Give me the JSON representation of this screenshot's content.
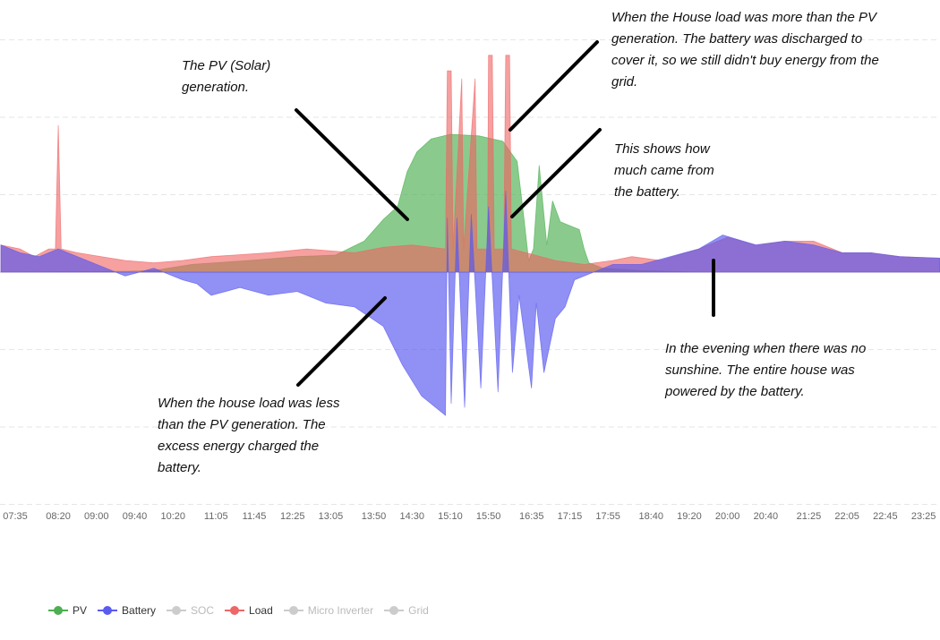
{
  "chart_data": {
    "type": "area",
    "title": "",
    "xlabel": "",
    "ylabel": "",
    "ylim": [
      -3,
      3
    ],
    "grid": true,
    "legend_placement": "bottom-left",
    "x_ticks": [
      "07:35",
      "08:20",
      "09:00",
      "09:40",
      "10:20",
      "11:05",
      "11:45",
      "12:25",
      "13:05",
      "13:50",
      "14:30",
      "15:10",
      "15:50",
      "16:35",
      "17:15",
      "17:55",
      "18:40",
      "19:20",
      "20:00",
      "20:40",
      "21:25",
      "22:05",
      "22:45",
      "23:25"
    ],
    "series": [
      {
        "name": "PV",
        "color": "#4caf50",
        "visible": true,
        "points": [
          [
            "07:20",
            0
          ],
          [
            "09:30",
            0.01
          ],
          [
            "10:00",
            0.02
          ],
          [
            "10:40",
            0.1
          ],
          [
            "11:40",
            0.15
          ],
          [
            "12:30",
            0.2
          ],
          [
            "13:10",
            0.22
          ],
          [
            "13:40",
            0.4
          ],
          [
            "14:00",
            0.68
          ],
          [
            "14:15",
            0.85
          ],
          [
            "14:25",
            1.3
          ],
          [
            "14:35",
            1.55
          ],
          [
            "14:50",
            1.72
          ],
          [
            "15:10",
            1.78
          ],
          [
            "15:40",
            1.76
          ],
          [
            "16:05",
            1.69
          ],
          [
            "16:20",
            1.43
          ],
          [
            "16:27",
            0.7
          ],
          [
            "16:32",
            0.15
          ],
          [
            "16:37",
            0.3
          ],
          [
            "16:43",
            1.38
          ],
          [
            "16:51",
            0.35
          ],
          [
            "16:57",
            0.92
          ],
          [
            "17:05",
            0.65
          ],
          [
            "17:15",
            0.6
          ],
          [
            "17:25",
            0.55
          ],
          [
            "17:30",
            0.3
          ],
          [
            "17:35",
            0.12
          ],
          [
            "17:50",
            0.05
          ],
          [
            "18:30",
            0.02
          ],
          [
            "19:30",
            0
          ],
          [
            "23:42",
            0
          ]
        ]
      },
      {
        "name": "Battery",
        "color": "#5b5bef",
        "visible": true,
        "points": [
          [
            "07:20",
            0.35
          ],
          [
            "07:40",
            0.25
          ],
          [
            "08:00",
            0.2
          ],
          [
            "08:20",
            0.3
          ],
          [
            "09:00",
            0.1
          ],
          [
            "09:30",
            -0.05
          ],
          [
            "10:00",
            0.05
          ],
          [
            "10:30",
            -0.1
          ],
          [
            "10:45",
            -0.15
          ],
          [
            "11:00",
            -0.3
          ],
          [
            "11:30",
            -0.2
          ],
          [
            "12:00",
            -0.3
          ],
          [
            "12:30",
            -0.25
          ],
          [
            "13:00",
            -0.4
          ],
          [
            "13:30",
            -0.45
          ],
          [
            "14:00",
            -0.7
          ],
          [
            "14:20",
            -1.2
          ],
          [
            "14:40",
            -1.6
          ],
          [
            "15:05",
            -1.85
          ],
          [
            "15:07",
            0.7
          ],
          [
            "15:11",
            -1.7
          ],
          [
            "15:17",
            0.7
          ],
          [
            "15:25",
            -1.75
          ],
          [
            "15:32",
            0.75
          ],
          [
            "15:42",
            -1.5
          ],
          [
            "15:50",
            0.85
          ],
          [
            "16:00",
            -1.55
          ],
          [
            "16:08",
            1.05
          ],
          [
            "16:15",
            -1.3
          ],
          [
            "16:22",
            -0.3
          ],
          [
            "16:35",
            -1.5
          ],
          [
            "16:40",
            -0.4
          ],
          [
            "16:48",
            -1.3
          ],
          [
            "17:00",
            -0.6
          ],
          [
            "17:10",
            -0.45
          ],
          [
            "17:20",
            -0.1
          ],
          [
            "17:40",
            0.0
          ],
          [
            "18:00",
            0.1
          ],
          [
            "18:30",
            0.1
          ],
          [
            "19:00",
            0.2
          ],
          [
            "19:30",
            0.3
          ],
          [
            "19:55",
            0.48
          ],
          [
            "20:30",
            0.35
          ],
          [
            "21:00",
            0.4
          ],
          [
            "21:30",
            0.35
          ],
          [
            "22:00",
            0.25
          ],
          [
            "22:30",
            0.25
          ],
          [
            "23:00",
            0.2
          ],
          [
            "23:42",
            0.18
          ]
        ]
      },
      {
        "name": "SOC",
        "color": "#cccccc",
        "visible": false,
        "points": []
      },
      {
        "name": "Load",
        "color": "#ee6666",
        "visible": true,
        "points": [
          [
            "07:20",
            0.35
          ],
          [
            "07:40",
            0.3
          ],
          [
            "07:55",
            0.2
          ],
          [
            "08:10",
            0.3
          ],
          [
            "08:17",
            0.3
          ],
          [
            "08:20",
            1.9
          ],
          [
            "08:23",
            0.3
          ],
          [
            "08:40",
            0.25
          ],
          [
            "09:30",
            0.15
          ],
          [
            "10:00",
            0.12
          ],
          [
            "10:30",
            0.15
          ],
          [
            "11:00",
            0.2
          ],
          [
            "12:00",
            0.25
          ],
          [
            "12:40",
            0.3
          ],
          [
            "13:30",
            0.25
          ],
          [
            "14:00",
            0.32
          ],
          [
            "14:30",
            0.35
          ],
          [
            "15:05",
            0.3
          ],
          [
            "15:07",
            2.6
          ],
          [
            "15:11",
            2.6
          ],
          [
            "15:13",
            0.3
          ],
          [
            "15:22",
            2.5
          ],
          [
            "15:24",
            0.3
          ],
          [
            "15:36",
            2.5
          ],
          [
            "15:38",
            0.3
          ],
          [
            "15:49",
            0.3
          ],
          [
            "15:50",
            2.8
          ],
          [
            "15:54",
            2.8
          ],
          [
            "15:56",
            0.3
          ],
          [
            "16:06",
            0.3
          ],
          [
            "16:08",
            2.8
          ],
          [
            "16:12",
            2.8
          ],
          [
            "16:14",
            0.3
          ],
          [
            "17:00",
            0.15
          ],
          [
            "17:30",
            0.1
          ],
          [
            "18:00",
            0.15
          ],
          [
            "18:20",
            0.2
          ],
          [
            "18:50",
            0.15
          ],
          [
            "19:30",
            0.3
          ],
          [
            "20:00",
            0.45
          ],
          [
            "20:30",
            0.35
          ],
          [
            "21:00",
            0.4
          ],
          [
            "21:30",
            0.4
          ],
          [
            "22:00",
            0.25
          ],
          [
            "22:30",
            0.25
          ],
          [
            "23:00",
            0.2
          ],
          [
            "23:42",
            0.18
          ]
        ]
      },
      {
        "name": "Micro Inverter",
        "color": "#cccccc",
        "visible": false,
        "points": []
      },
      {
        "name": "Grid",
        "color": "#cccccc",
        "visible": false,
        "points": []
      }
    ],
    "annotations": [
      {
        "text": "The PV (Solar)\ngeneration."
      },
      {
        "text": "When the House load was more than the PV\ngeneration. The battery was discharged to\ncover it, so we still didn't buy energy from the\ngrid."
      },
      {
        "text": "This shows how\nmuch came from\nthe battery."
      },
      {
        "text": "When the house load was less\nthan the PV generation. The\nexcess energy charged the\nbattery."
      },
      {
        "text": "In the evening when there was no\nsunshine. The entire house was\npowered by the battery."
      }
    ]
  }
}
